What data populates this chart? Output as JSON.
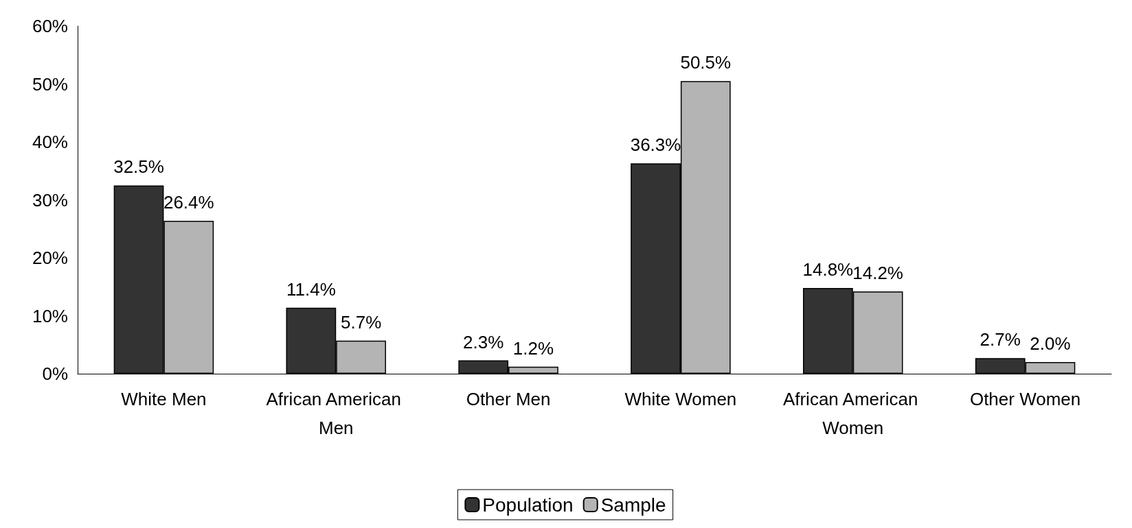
{
  "chart_data": {
    "type": "bar",
    "categories": [
      "White Men",
      "African American Men",
      "Other Men",
      "White Women",
      "African American Women",
      "Other Women"
    ],
    "series": [
      {
        "name": "Population",
        "color": "#333333",
        "values": [
          32.5,
          11.4,
          2.3,
          36.3,
          14.8,
          2.7
        ],
        "value_labels": [
          "32.5%",
          "11.4%",
          "2.3%",
          "36.3%",
          "14.8%",
          "2.7%"
        ]
      },
      {
        "name": "Sample",
        "color": "#b4b4b4",
        "values": [
          26.4,
          5.7,
          1.2,
          50.5,
          14.2,
          2.0
        ],
        "value_labels": [
          "26.4%",
          "5.7%",
          "1.2%",
          "50.5%",
          "14.2%",
          "2.0%"
        ]
      }
    ],
    "ylim": [
      0,
      60
    ],
    "yticks": [
      {
        "value": 0,
        "label": "0%"
      },
      {
        "value": 10,
        "label": "10%"
      },
      {
        "value": 20,
        "label": "20%"
      },
      {
        "value": 30,
        "label": "30%"
      },
      {
        "value": 40,
        "label": "40%"
      },
      {
        "value": 50,
        "label": "50%"
      },
      {
        "value": 60,
        "label": "60%"
      }
    ],
    "grid": false,
    "legend": "bottom"
  }
}
